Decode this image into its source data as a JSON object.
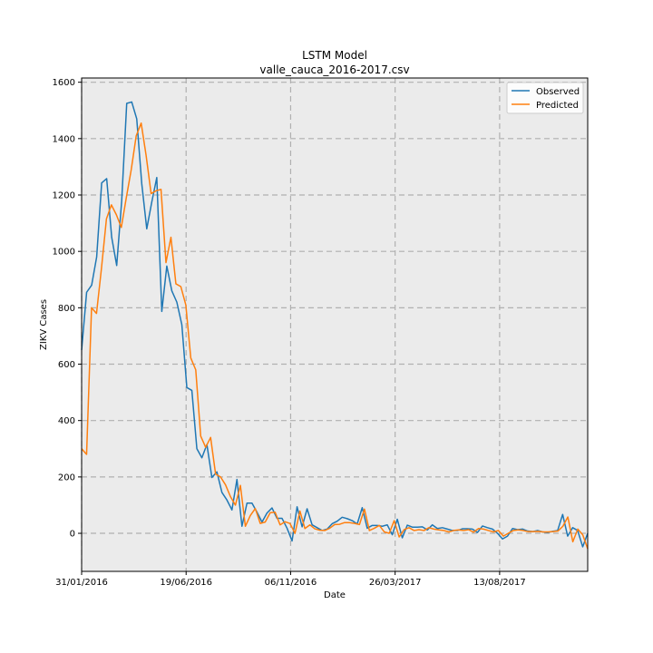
{
  "chart_data": {
    "type": "line",
    "title": "LSTM Model",
    "subtitle": "valle_cauca_2016-2017.csv",
    "xlabel": "Date",
    "ylabel": "ZIKV Cases",
    "x_tick_labels": [
      "31/01/2016",
      "19/06/2016",
      "06/11/2016",
      "26/03/2017",
      "13/08/2017"
    ],
    "x_tick_dates": [
      "2016-01-31",
      "2016-06-19",
      "2016-11-06",
      "2017-03-26",
      "2017-08-13"
    ],
    "x_start_date": "2016-01-31",
    "x_end_date": "2017-12-09",
    "yticks": [
      0,
      200,
      400,
      600,
      800,
      1000,
      1200,
      1400,
      1600
    ],
    "ylim": [
      -135,
      1615
    ],
    "grid": true,
    "grid_style": "dashed",
    "background": "#ebebeb",
    "legend_position": "top-right",
    "series": [
      {
        "name": "Observed",
        "color": "#1f77b4",
        "values": [
          650,
          855,
          880,
          980,
          1243,
          1258,
          1050,
          950,
          1180,
          1525,
          1530,
          1470,
          1240,
          1080,
          1175,
          1262,
          787,
          948,
          860,
          820,
          740,
          517,
          507,
          300,
          268,
          315,
          198,
          218,
          145,
          118,
          83,
          191,
          25,
          107,
          107,
          75,
          40,
          72,
          90,
          53,
          53,
          18,
          -27,
          94,
          23,
          87,
          30,
          20,
          10,
          15,
          34,
          43,
          57,
          52,
          45,
          33,
          91,
          18,
          28,
          28,
          25,
          30,
          -5,
          50,
          -16,
          29,
          22,
          22,
          23,
          12,
          30,
          17,
          20,
          15,
          10,
          10,
          16,
          16,
          15,
          3,
          26,
          20,
          15,
          0,
          -20,
          -10,
          17,
          13,
          15,
          8,
          6,
          10,
          5,
          3,
          7,
          10,
          67,
          -10,
          20,
          10,
          -48,
          0
        ]
      },
      {
        "name": "Predicted",
        "color": "#ff7f0e",
        "values": [
          300,
          280,
          800,
          780,
          940,
          1115,
          1165,
          1130,
          1085,
          1190,
          1290,
          1410,
          1455,
          1340,
          1205,
          1215,
          1220,
          960,
          1050,
          885,
          875,
          810,
          622,
          580,
          345,
          305,
          340,
          210,
          200,
          172,
          130,
          100,
          170,
          25,
          63,
          88,
          35,
          40,
          73,
          75,
          30,
          41,
          35,
          0,
          79,
          17,
          30,
          16,
          11,
          10,
          18,
          31,
          32,
          38,
          38,
          35,
          31,
          86,
          10,
          18,
          28,
          5,
          0,
          45,
          -13,
          13,
          20,
          10,
          13,
          10,
          20,
          15,
          12,
          10,
          5,
          10,
          12,
          10,
          13,
          4,
          17,
          15,
          10,
          5,
          10,
          -10,
          0,
          10,
          12,
          10,
          6,
          6,
          7,
          5,
          5,
          6,
          8,
          25,
          58,
          -30,
          15,
          -5,
          -55
        ]
      }
    ]
  }
}
